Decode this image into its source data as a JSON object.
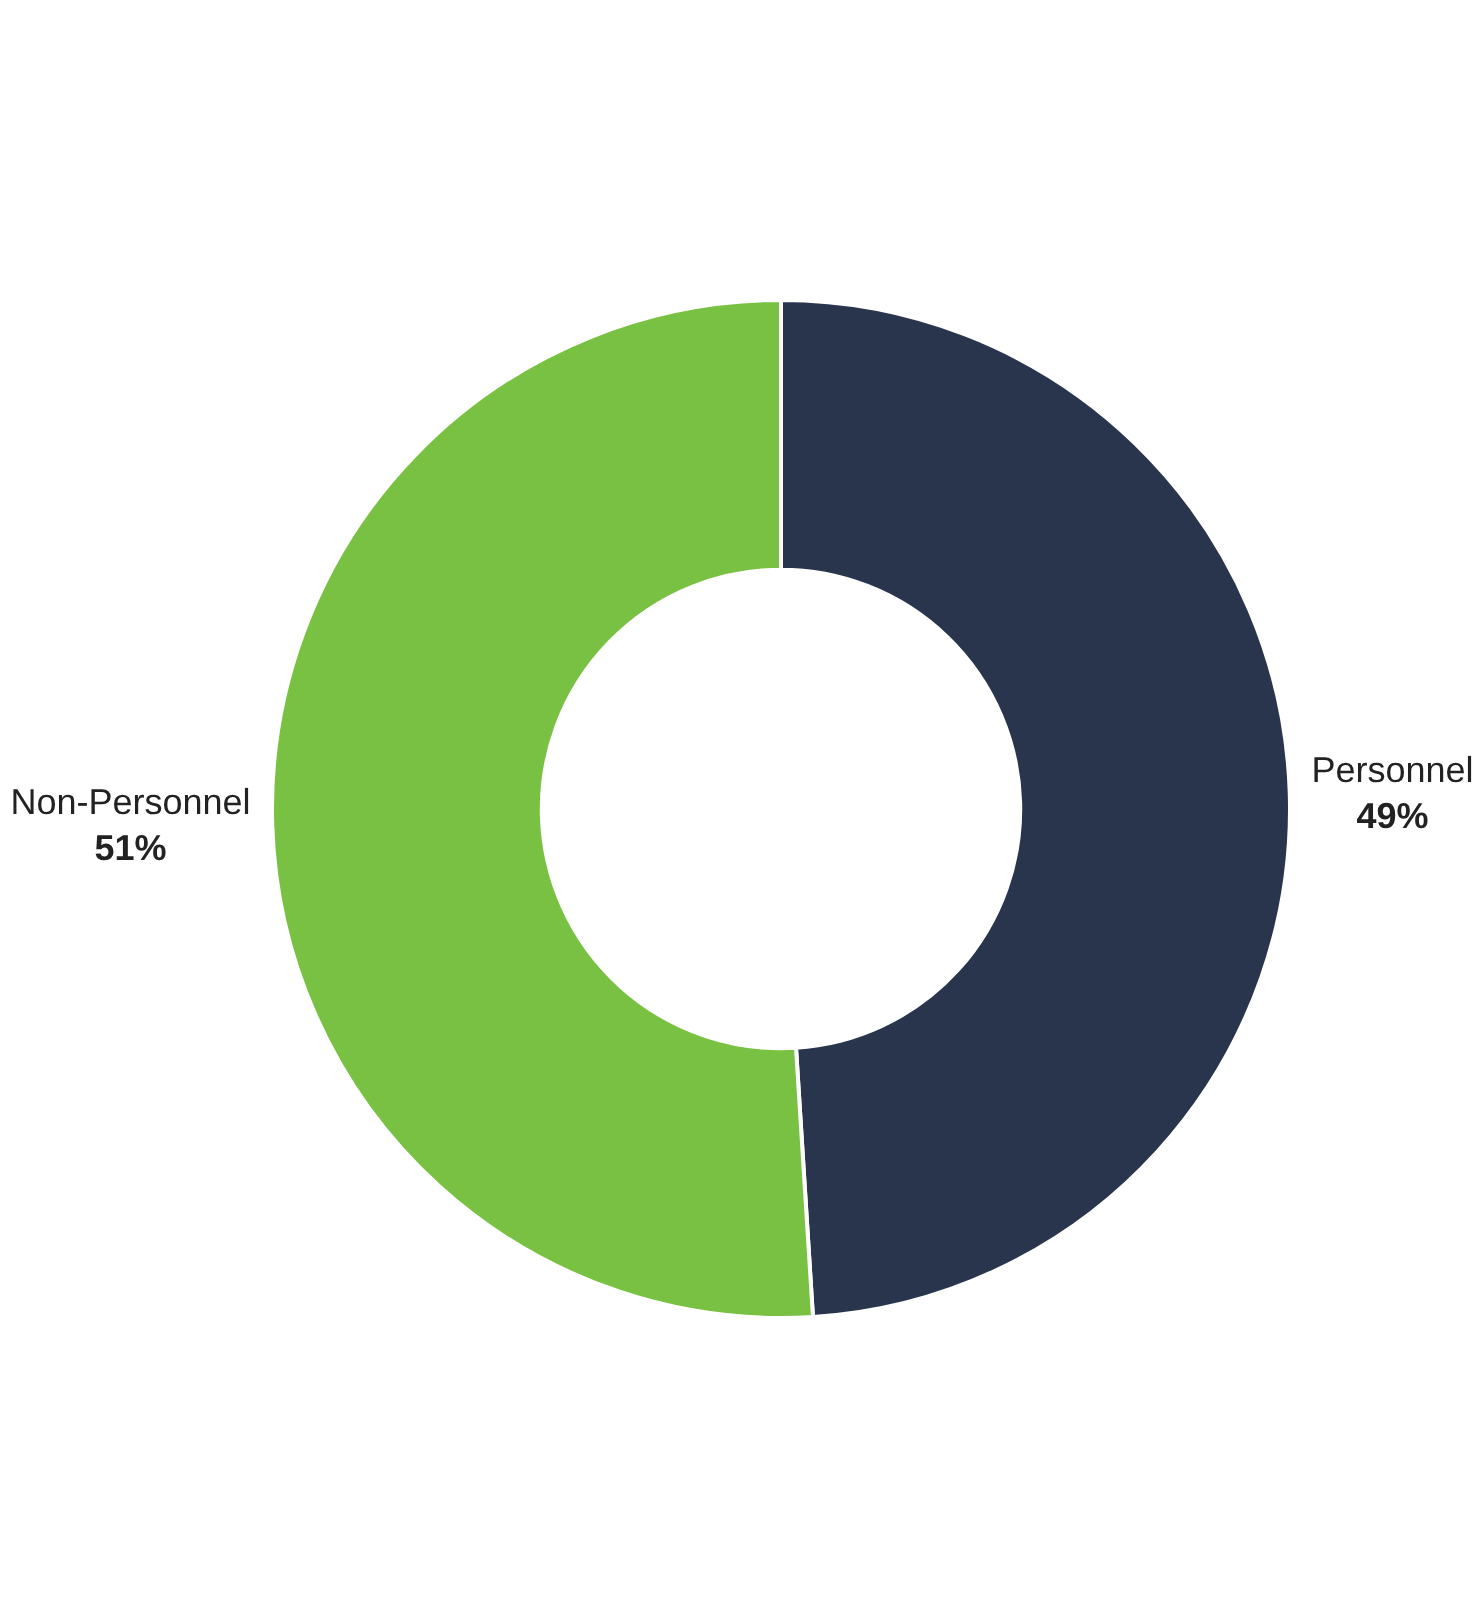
{
  "chart_data": {
    "type": "donut",
    "categories": [
      "Personnel",
      "Non-Personnel"
    ],
    "values": [
      49,
      51
    ],
    "colors": [
      "#29344d",
      "#79c143"
    ],
    "value_labels": [
      "49%",
      "51%"
    ],
    "legend": false
  }
}
